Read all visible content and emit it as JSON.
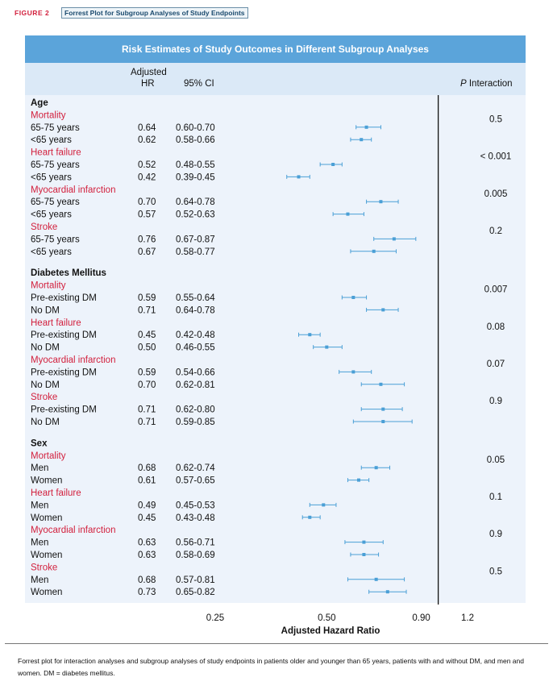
{
  "figure": {
    "label": "FIGURE 2",
    "title": "Forrest Plot for Subgroup Analyses of Study Endpoints",
    "caption": "Forrest plot for interaction analyses and subgroup analyses of study endpoints in patients older and younger than 65 years, patients with and without DM, and men and women. DM = diabetes mellitus."
  },
  "table_header": {
    "banner": "Risk Estimates of Study Outcomes in Different Subgroup Analyses",
    "hr_line1": "Adjusted",
    "hr_line2": "HR",
    "ci": "95% CI",
    "p_italic": "P",
    "p_rest": " Interaction"
  },
  "colors": {
    "banner": "#5ba4da",
    "outcome_text": "#d21f3c",
    "marker": "#4a9fd6",
    "panel": "#edf3fb"
  },
  "chart_data": {
    "type": "forest",
    "xlabel": "Adjusted Hazard Ratio",
    "x_scale": "log",
    "xlim": [
      0.25,
      1.2
    ],
    "xticks": [
      0.25,
      0.5,
      0.9,
      1.2
    ],
    "xtick_labels": [
      "0.25",
      "0.50",
      "0.90",
      "1.2"
    ],
    "reference_line": 1.0,
    "groups": [
      {
        "name": "Age",
        "outcomes": [
          {
            "name": "Mortality",
            "p": "0.5",
            "rows": [
              {
                "label": "65-75 years",
                "hr": 0.64,
                "hr_text": "0.64",
                "ci_text": "0.60-0.70",
                "low": 0.6,
                "high": 0.7
              },
              {
                "label": "<65 years",
                "hr": 0.62,
                "hr_text": "0.62",
                "ci_text": "0.58-0.66",
                "low": 0.58,
                "high": 0.66
              }
            ]
          },
          {
            "name": "Heart failure",
            "p": "< 0.001",
            "rows": [
              {
                "label": "65-75 years",
                "hr": 0.52,
                "hr_text": "0.52",
                "ci_text": "0.48-0.55",
                "low": 0.48,
                "high": 0.55
              },
              {
                "label": "<65 years",
                "hr": 0.42,
                "hr_text": "0.42",
                "ci_text": "0.39-0.45",
                "low": 0.39,
                "high": 0.45
              }
            ]
          },
          {
            "name": "Myocardial infarction",
            "p": "0.005",
            "rows": [
              {
                "label": "65-75 years",
                "hr": 0.7,
                "hr_text": "0.70",
                "ci_text": "0.64-0.78",
                "low": 0.64,
                "high": 0.78
              },
              {
                "label": "<65 years",
                "hr": 0.57,
                "hr_text": "0.57",
                "ci_text": "0.52-0.63",
                "low": 0.52,
                "high": 0.63
              }
            ]
          },
          {
            "name": "Stroke",
            "p": "0.2",
            "rows": [
              {
                "label": "65-75 years",
                "hr": 0.76,
                "hr_text": "0.76",
                "ci_text": "0.67-0.87",
                "low": 0.67,
                "high": 0.87
              },
              {
                "label": "<65 years",
                "hr": 0.67,
                "hr_text": "0.67",
                "ci_text": "0.58-0.77",
                "low": 0.58,
                "high": 0.77
              }
            ]
          }
        ]
      },
      {
        "name": "Diabetes Mellitus",
        "outcomes": [
          {
            "name": "Mortality",
            "p": "0.007",
            "rows": [
              {
                "label": "Pre-existing DM",
                "hr": 0.59,
                "hr_text": "0.59",
                "ci_text": "0.55-0.64",
                "low": 0.55,
                "high": 0.64
              },
              {
                "label": "No DM",
                "hr": 0.71,
                "hr_text": "0.71",
                "ci_text": "0.64-0.78",
                "low": 0.64,
                "high": 0.78
              }
            ]
          },
          {
            "name": "Heart failure",
            "p": "0.08",
            "rows": [
              {
                "label": "Pre-existing DM",
                "hr": 0.45,
                "hr_text": "0.45",
                "ci_text": "0.42-0.48",
                "low": 0.42,
                "high": 0.48
              },
              {
                "label": "No DM",
                "hr": 0.5,
                "hr_text": "0.50",
                "ci_text": "0.46-0.55",
                "low": 0.46,
                "high": 0.55
              }
            ]
          },
          {
            "name": "Myocardial infarction",
            "p": "0.07",
            "rows": [
              {
                "label": "Pre-existing DM",
                "hr": 0.59,
                "hr_text": "0.59",
                "ci_text": "0.54-0.66",
                "low": 0.54,
                "high": 0.66
              },
              {
                "label": "No DM",
                "hr": 0.7,
                "hr_text": "0.70",
                "ci_text": "0.62-0.81",
                "low": 0.62,
                "high": 0.81
              }
            ]
          },
          {
            "name": "Stroke",
            "p": "0.9",
            "rows": [
              {
                "label": "Pre-existing DM",
                "hr": 0.71,
                "hr_text": "0.71",
                "ci_text": "0.62-0.80",
                "low": 0.62,
                "high": 0.8
              },
              {
                "label": "No DM",
                "hr": 0.71,
                "hr_text": "0.71",
                "ci_text": "0.59-0.85",
                "low": 0.59,
                "high": 0.85
              }
            ]
          }
        ]
      },
      {
        "name": "Sex",
        "outcomes": [
          {
            "name": "Mortality",
            "p": "0.05",
            "rows": [
              {
                "label": "Men",
                "hr": 0.68,
                "hr_text": "0.68",
                "ci_text": "0.62-0.74",
                "low": 0.62,
                "high": 0.74
              },
              {
                "label": "Women",
                "hr": 0.61,
                "hr_text": "0.61",
                "ci_text": "0.57-0.65",
                "low": 0.57,
                "high": 0.65
              }
            ]
          },
          {
            "name": "Heart failure",
            "p": "0.1",
            "rows": [
              {
                "label": "Men",
                "hr": 0.49,
                "hr_text": "0.49",
                "ci_text": "0.45-0.53",
                "low": 0.45,
                "high": 0.53
              },
              {
                "label": "Women",
                "hr": 0.45,
                "hr_text": "0.45",
                "ci_text": "0.43-0.48",
                "low": 0.43,
                "high": 0.48
              }
            ]
          },
          {
            "name": "Myocardial infarction",
            "p": "0.9",
            "rows": [
              {
                "label": "Men",
                "hr": 0.63,
                "hr_text": "0.63",
                "ci_text": "0.56-0.71",
                "low": 0.56,
                "high": 0.71
              },
              {
                "label": "Women",
                "hr": 0.63,
                "hr_text": "0.63",
                "ci_text": "0.58-0.69",
                "low": 0.58,
                "high": 0.69
              }
            ]
          },
          {
            "name": "Stroke",
            "p": "0.5",
            "rows": [
              {
                "label": "Men",
                "hr": 0.68,
                "hr_text": "0.68",
                "ci_text": "0.57-0.81",
                "low": 0.57,
                "high": 0.81
              },
              {
                "label": "Women",
                "hr": 0.73,
                "hr_text": "0.73",
                "ci_text": "0.65-0.82",
                "low": 0.65,
                "high": 0.82
              }
            ]
          }
        ]
      }
    ]
  }
}
